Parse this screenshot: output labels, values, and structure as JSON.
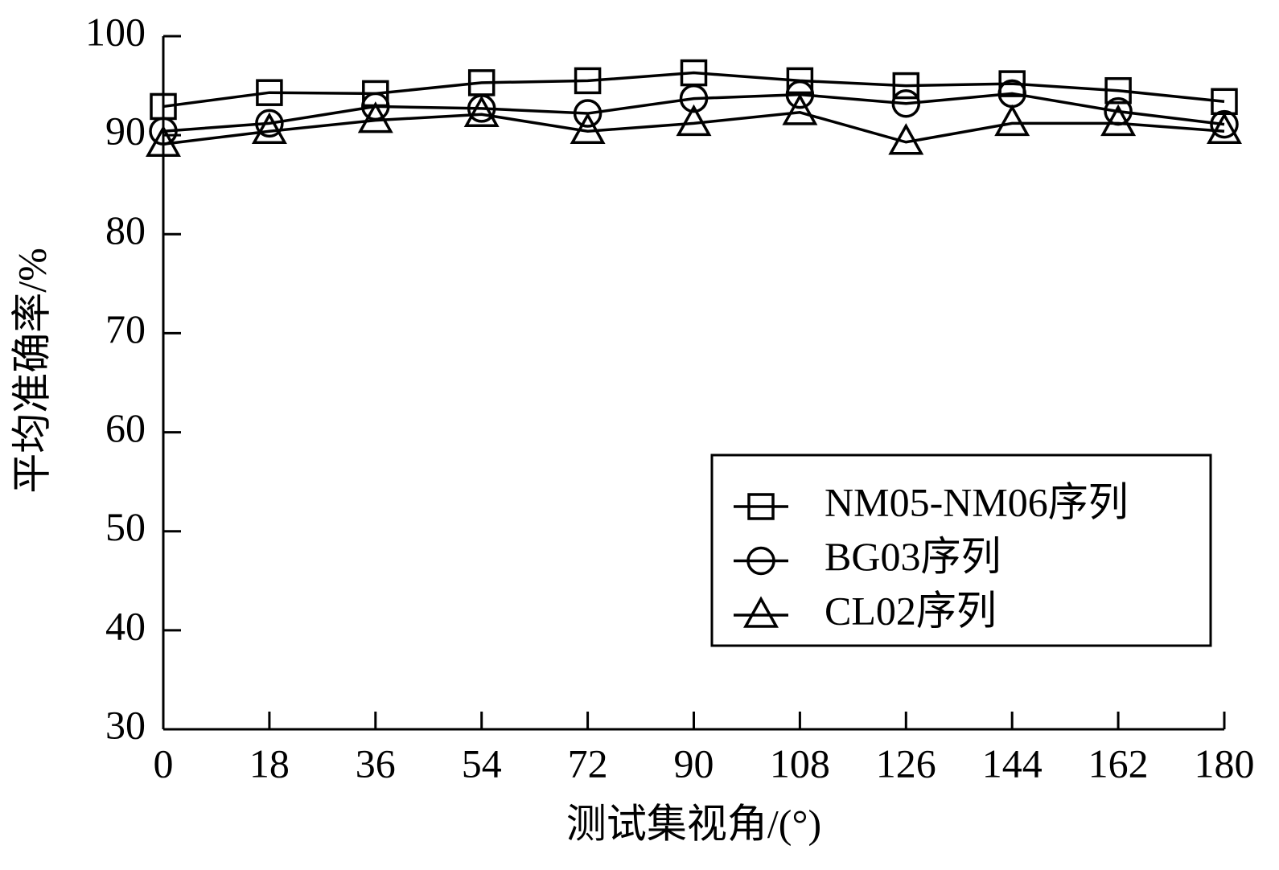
{
  "chart_data": {
    "type": "line",
    "x_label": "测试集视角/(°)",
    "y_label": "平均准确率/%",
    "x": [
      0,
      18,
      36,
      54,
      72,
      90,
      108,
      126,
      144,
      162,
      180
    ],
    "xlim": [
      0,
      180
    ],
    "xticks": [
      0,
      18,
      36,
      54,
      72,
      90,
      108,
      126,
      144,
      162,
      180
    ],
    "ylim": [
      30,
      100
    ],
    "yticks": [
      30,
      40,
      50,
      60,
      70,
      80,
      90,
      100
    ],
    "legend_position": "lower right",
    "series": [
      {
        "name": "NM05-NM06序列",
        "color": "#000000",
        "marker": "square",
        "values": [
          92.9,
          94.3,
          94.2,
          95.3,
          95.5,
          96.3,
          95.5,
          95.0,
          95.2,
          94.5,
          93.4
        ]
      },
      {
        "name": "BG03序列",
        "color": "#000000",
        "marker": "circle",
        "values": [
          90.4,
          91.2,
          92.9,
          92.7,
          92.2,
          93.7,
          94.1,
          93.2,
          94.2,
          92.4,
          91.1
        ]
      },
      {
        "name": "CL02序列",
        "color": "#000000",
        "marker": "triangle",
        "values": [
          89.1,
          90.4,
          91.5,
          92.1,
          90.4,
          91.2,
          92.3,
          89.3,
          91.2,
          91.2,
          90.4
        ]
      }
    ]
  }
}
